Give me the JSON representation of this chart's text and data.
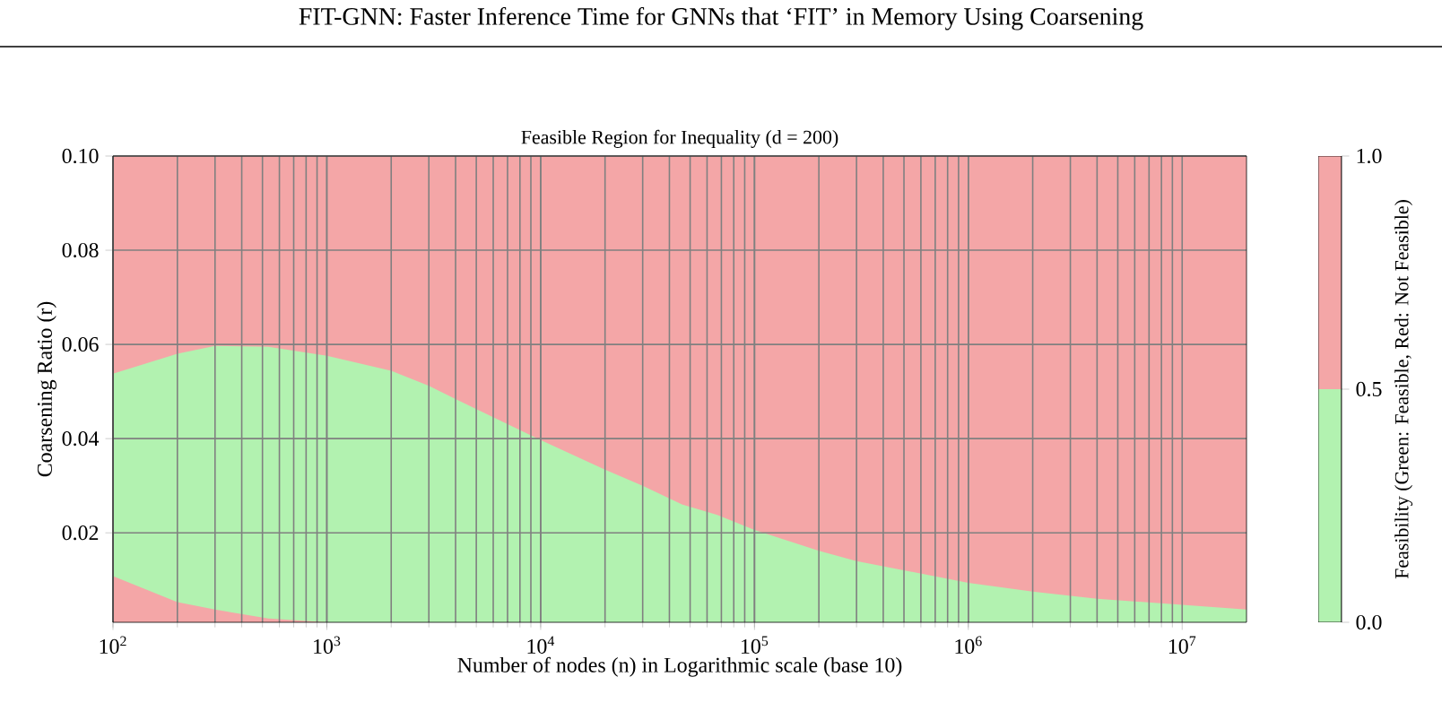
{
  "chart_data": {
    "type": "area",
    "title": "Feasible Region for Inequality (d = 200)",
    "xlabel": "Number of nodes (n) in Logarithmic scale (base 10)",
    "ylabel": "Coarsening Ratio (r)",
    "clabel": "Feasibility (Green: Feasible, Red: Not Feasible)",
    "annotations": [
      "FIT-GNN: Faster Inference Time for GNNs that ‘FIT’ in Memory Using Coarsening"
    ],
    "log": "x",
    "grid": true,
    "x": [
      100,
      200,
      300,
      533,
      1000,
      2000,
      3000,
      5080,
      10000,
      20000,
      30000,
      46000,
      67000,
      100000,
      200000,
      300000,
      1000000,
      2000000,
      4000000,
      10000000,
      20000000
    ],
    "series": [
      {
        "color": "#b2f2b0",
        "values": [
          0.0538,
          0.058,
          0.0597,
          0.0595,
          0.0576,
          0.0544,
          0.0512,
          0.0461,
          0.0397,
          0.0334,
          0.03,
          0.026,
          0.0238,
          0.0206,
          0.0162,
          0.014,
          0.0094,
          0.0075,
          0.006,
          0.0047,
          0.0037
        ]
      },
      {
        "color": "#f4a6a7",
        "x": [
          100,
          200,
          300,
          533,
          1000
        ],
        "values": [
          0.0108,
          0.0053,
          0.0037,
          0.0018,
          0.001
        ]
      }
    ],
    "bands": [
      {
        "axis": "y",
        "from": 0.001,
        "to": 0.1,
        "color": "#f4a6a7"
      }
    ],
    "xlim": [
      100,
      20000000
    ],
    "ylim": [
      0.001,
      0.1
    ],
    "xticks": [
      {
        "value": 100,
        "label": "10$^{2}$"
      },
      {
        "value": 1000,
        "label": "10$^{3}$"
      },
      {
        "value": 10000,
        "label": "10$^{4}$"
      },
      {
        "value": 100000,
        "label": "10$^{5}$"
      },
      {
        "value": 1000000,
        "label": "10$^{6}$"
      },
      {
        "value": 10000000,
        "label": "10$^{7}$"
      }
    ],
    "yticks": [
      0.02,
      0.04,
      0.06,
      0.08,
      {
        "value": 0.1,
        "label": "0.10"
      }
    ],
    "clim": [
      0.0,
      1.0
    ],
    "cticks": [
      {
        "value": 0.0,
        "label": "0.0"
      },
      0.5,
      {
        "value": 1.0,
        "label": "1.0"
      }
    ]
  }
}
